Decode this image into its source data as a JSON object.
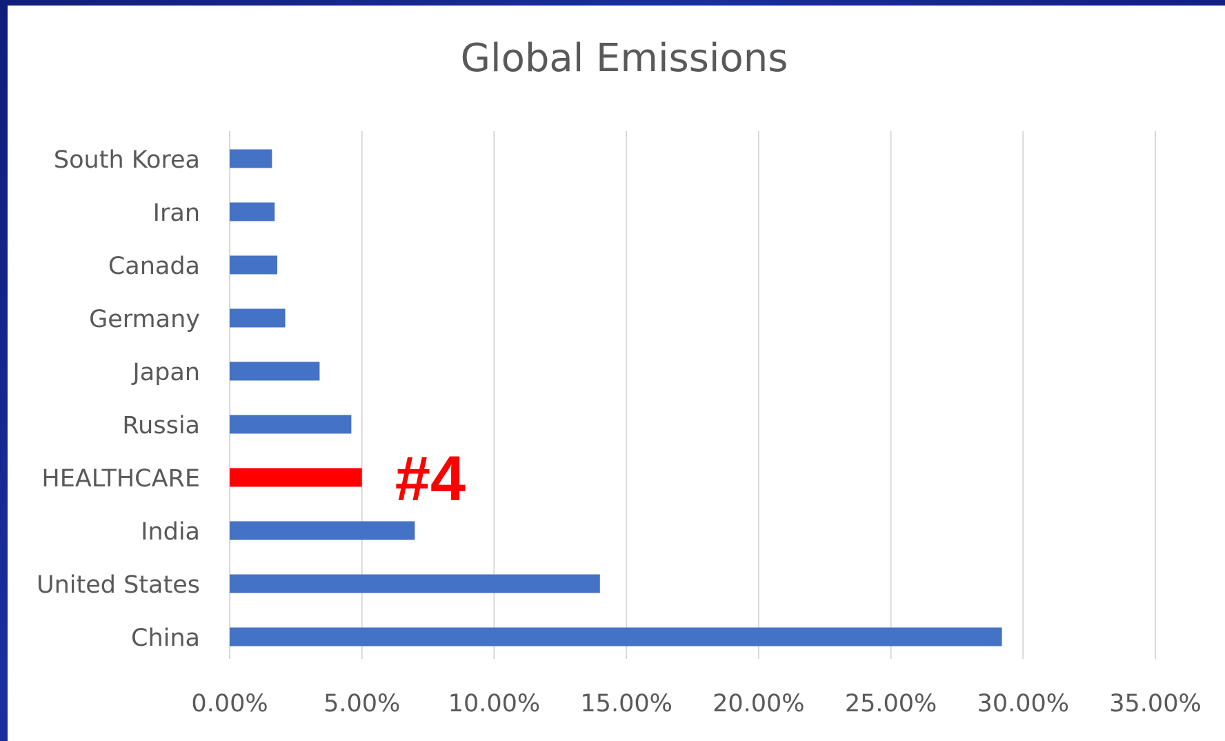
{
  "chart_data": {
    "type": "bar",
    "orientation": "horizontal",
    "title": "Global Emissions",
    "categories": [
      "China",
      "United States",
      "India",
      "HEALTHCARE",
      "Russia",
      "Japan",
      "Germany",
      "Canada",
      "Iran",
      "South Korea"
    ],
    "values": [
      29.2,
      14.0,
      7.0,
      5.0,
      4.6,
      3.4,
      2.1,
      1.8,
      1.7,
      1.6
    ],
    "value_unit": "%",
    "xlim": [
      0,
      35
    ],
    "xticks": [
      0,
      5,
      10,
      15,
      20,
      25,
      30,
      35
    ],
    "xtick_labels": [
      "0.00%",
      "5.00%",
      "10.00%",
      "15.00%",
      "20.00%",
      "25.00%",
      "30.00%",
      "35.00%"
    ],
    "xlabel": "",
    "ylabel": "",
    "grid": "vertical",
    "legend": "none",
    "highlight_category": "HEALTHCARE",
    "annotation": {
      "text": "#4",
      "category": "HEALTHCARE"
    }
  },
  "colors": {
    "bar": "#4472c4",
    "highlight": "#ff0000",
    "annotation": "#ff0000",
    "gridline": "#d9d9d9",
    "text": "#595959",
    "background": "#101e7a"
  }
}
